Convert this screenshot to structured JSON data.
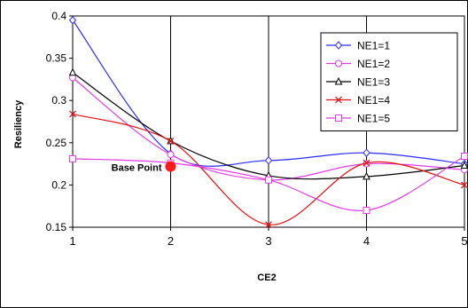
{
  "chart_data": {
    "type": "line",
    "title": "",
    "xlabel": "CE2",
    "ylabel": "Resiliency",
    "x": [
      1,
      2,
      3,
      4,
      5
    ],
    "xlim": [
      1,
      5
    ],
    "ylim": [
      0.15,
      0.4
    ],
    "xticks": [
      "1",
      "2",
      "3",
      "4",
      "5"
    ],
    "yticks": [
      "0.15",
      "0.2",
      "0.25",
      "0.3",
      "0.35",
      "0.4"
    ],
    "grid": "vertical",
    "legend_position": "top-right",
    "series": [
      {
        "name": "NE1=1",
        "values": [
          0.395,
          0.237,
          0.229,
          0.238,
          0.225
        ],
        "color": "#2a2aff",
        "marker": "diamond"
      },
      {
        "name": "NE1=2",
        "values": [
          0.327,
          0.236,
          0.206,
          0.225,
          0.218
        ],
        "color": "#e23be2",
        "marker": "circle"
      },
      {
        "name": "NE1=3",
        "values": [
          0.333,
          0.252,
          0.211,
          0.21,
          0.223
        ],
        "color": "#000000",
        "marker": "triangle"
      },
      {
        "name": "NE1=4",
        "values": [
          0.284,
          0.252,
          0.153,
          0.226,
          0.2
        ],
        "color": "#e01010",
        "marker": "x"
      },
      {
        "name": "NE1=5",
        "values": [
          0.231,
          0.226,
          0.206,
          0.17,
          0.234
        ],
        "color": "#e23be2",
        "marker": "square"
      }
    ],
    "annotations": [
      {
        "text": "Base Point",
        "x": 2,
        "y": 0.222,
        "color": "#ff1a1a"
      }
    ]
  }
}
